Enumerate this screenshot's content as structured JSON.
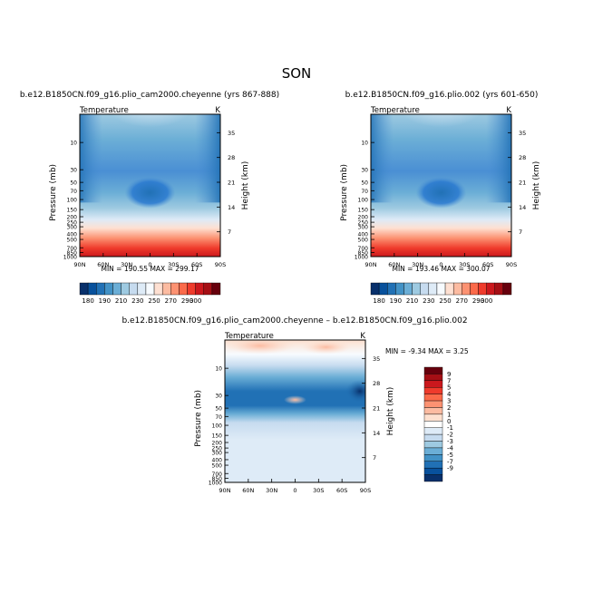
{
  "title": "SON",
  "colors": {
    "pos": [
      "#ffffff",
      "#fde0cf",
      "#fcbba1",
      "#fc9272",
      "#fb6a4a",
      "#ef3b2c",
      "#cb181d",
      "#a50f15",
      "#67000d"
    ],
    "temp": [
      "#08306b",
      "#08519c",
      "#2171b5",
      "#4292c6",
      "#6baed6",
      "#9ecae1",
      "#c6dbef",
      "#deebf7",
      "#f7fbff",
      "#fee0d2",
      "#fcbba1",
      "#fc9272",
      "#fb6a4a",
      "#ef3b2c",
      "#cb181d",
      "#a50f15",
      "#67000d"
    ]
  },
  "chart_data": [
    {
      "type": "heatmap",
      "title": "b.e12.B1850CN.f09_g16.plio_cam2000.cheyenne (yrs 867-888)",
      "variable": "Temperature",
      "units": "K",
      "ylabel": "Pressure (mb)",
      "ylabel_right": "Height (km)",
      "x_ticks": [
        "90N",
        "60N",
        "30N",
        "0",
        "30S",
        "60S",
        "90S"
      ],
      "y_ticks": [
        "10",
        "30",
        "50",
        "70",
        "100",
        "150",
        "200",
        "250",
        "300",
        "400",
        "500",
        "700",
        "850",
        "1000"
      ],
      "height_ticks": [
        "35",
        "28",
        "21",
        "14",
        "7"
      ],
      "stats": {
        "min_label": "MIN =",
        "min": "190.55",
        "max_label": "MAX =",
        "max": "299.17"
      },
      "colorbar_labels": [
        "180",
        "190",
        "210",
        "230",
        "250",
        "270",
        "290",
        "300"
      ]
    },
    {
      "type": "heatmap",
      "title": "b.e12.B1850CN.f09_g16.plio.002 (yrs 601-650)",
      "variable": "Temperature",
      "units": "K",
      "ylabel": "Pressure (mb)",
      "ylabel_right": "Height (km)",
      "x_ticks": [
        "90N",
        "60N",
        "30N",
        "0",
        "30S",
        "60S",
        "90S"
      ],
      "y_ticks": [
        "10",
        "30",
        "50",
        "70",
        "100",
        "150",
        "200",
        "250",
        "300",
        "400",
        "500",
        "700",
        "850",
        "1000"
      ],
      "height_ticks": [
        "35",
        "28",
        "21",
        "14",
        "7"
      ],
      "stats": {
        "min_label": "MIN =",
        "min": "193.46",
        "max_label": "MAX =",
        "max": "300.07"
      },
      "colorbar_labels": [
        "180",
        "190",
        "210",
        "230",
        "250",
        "270",
        "290",
        "300"
      ]
    },
    {
      "type": "heatmap",
      "title": "b.e12.B1850CN.f09_g16.plio_cam2000.cheyenne – b.e12.B1850CN.f09_g16.plio.002",
      "variable": "Temperature",
      "units": "K",
      "ylabel": "Pressure (mb)",
      "ylabel_right": "Height (km)",
      "x_ticks": [
        "90N",
        "60N",
        "30N",
        "0",
        "30S",
        "60S",
        "90S"
      ],
      "y_ticks": [
        "10",
        "30",
        "50",
        "70",
        "100",
        "150",
        "200",
        "250",
        "300",
        "400",
        "500",
        "700",
        "850",
        "1000"
      ],
      "height_ticks": [
        "35",
        "28",
        "21",
        "14",
        "7"
      ],
      "stats": {
        "min_label": "MIN =",
        "min": "-9.34",
        "max_label": "MAX =",
        "max": "3.25"
      },
      "colorbar_labels": [
        "9",
        "7",
        "5",
        "4",
        "3",
        "2",
        "1",
        "0",
        "-1",
        "-2",
        "-3",
        "-4",
        "-5",
        "-7",
        "-9"
      ]
    }
  ]
}
